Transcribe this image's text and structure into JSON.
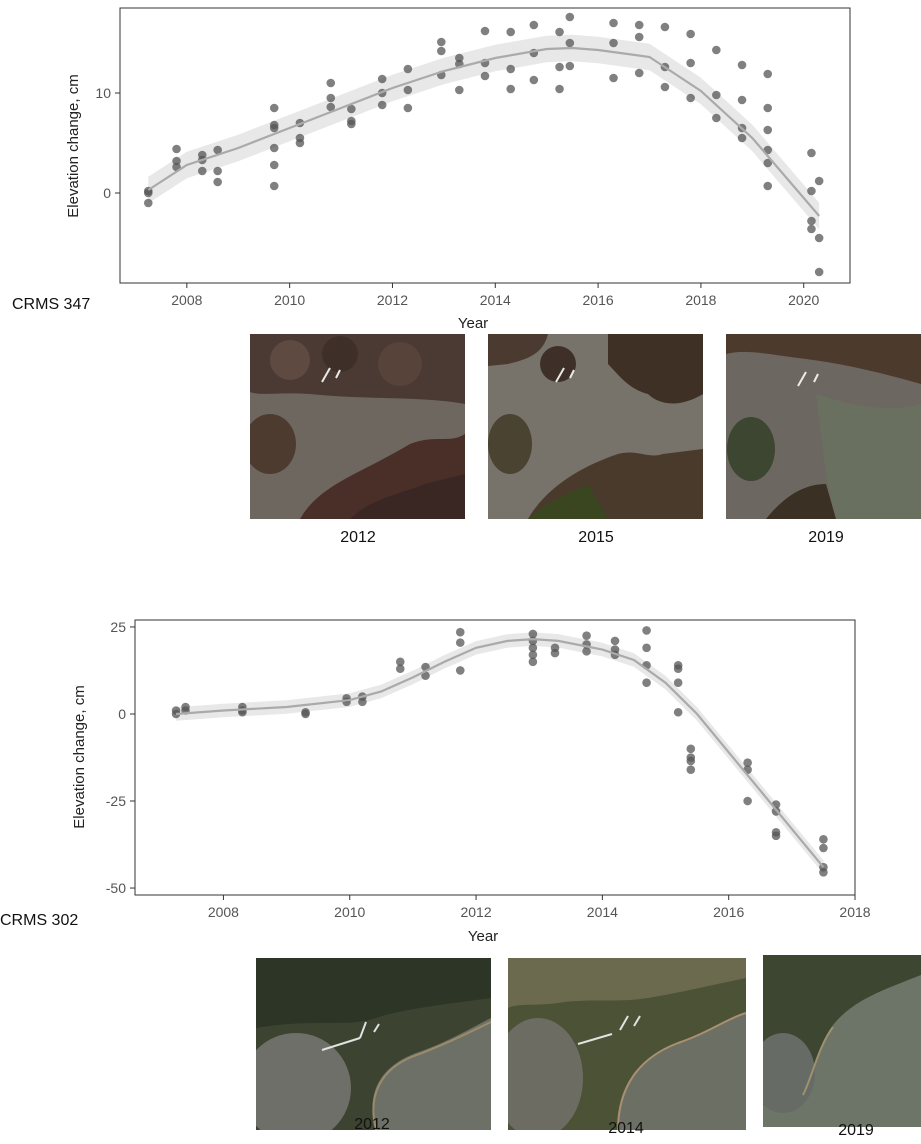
{
  "charts": [
    {
      "station": "CRMS 347",
      "photo_years": [
        "2012",
        "2015",
        "2019"
      ]
    },
    {
      "station": "CRMS 302",
      "photo_years": [
        "2012",
        "2014",
        "2019"
      ]
    }
  ],
  "colors": {
    "point": "#555555",
    "smooth_line": "#aaaaaa",
    "confidence_band": "#e6e6e6",
    "panel_border": "#333333",
    "water": "#6f6c63",
    "marsh_dark": "#3f2e26",
    "vegetation_green": "#3d4a2b"
  },
  "chart_data": [
    {
      "type": "scatter",
      "xlabel": "Year",
      "ylabel": "Elevation change, cm",
      "xlim": [
        2006.7,
        2020.9
      ],
      "ylim": [
        -9,
        18.5
      ],
      "xticks": [
        2008,
        2010,
        2012,
        2014,
        2016,
        2018,
        2020
      ],
      "yticks": [
        0,
        10
      ],
      "grid": false,
      "smooth": {
        "x": [
          2007.25,
          2008,
          2009,
          2010,
          2011,
          2012,
          2013,
          2014,
          2015,
          2015.5,
          2016,
          2017,
          2018,
          2019,
          2019.5,
          2020.3
        ],
        "y": [
          0.3,
          2.8,
          4.5,
          6.5,
          8.5,
          10.5,
          12.2,
          13.5,
          14.4,
          14.5,
          14.3,
          13.6,
          10.2,
          5.5,
          2.5,
          -2.3
        ]
      },
      "points": [
        [
          2007.25,
          0.2
        ],
        [
          2007.25,
          -1.0
        ],
        [
          2007.25,
          0.0
        ],
        [
          2007.8,
          4.4
        ],
        [
          2007.8,
          3.2
        ],
        [
          2007.8,
          2.6
        ],
        [
          2008.3,
          3.8
        ],
        [
          2008.3,
          2.2
        ],
        [
          2008.3,
          3.3
        ],
        [
          2008.6,
          4.3
        ],
        [
          2008.6,
          2.2
        ],
        [
          2008.6,
          1.1
        ],
        [
          2009.7,
          8.5
        ],
        [
          2009.7,
          6.8
        ],
        [
          2009.7,
          6.5
        ],
        [
          2009.7,
          4.5
        ],
        [
          2009.7,
          2.8
        ],
        [
          2009.7,
          0.7
        ],
        [
          2010.2,
          7.0
        ],
        [
          2010.2,
          5.5
        ],
        [
          2010.2,
          5.0
        ],
        [
          2010.8,
          11.0
        ],
        [
          2010.8,
          9.5
        ],
        [
          2010.8,
          8.6
        ],
        [
          2011.2,
          8.4
        ],
        [
          2011.2,
          7.2
        ],
        [
          2011.2,
          6.9
        ],
        [
          2011.8,
          11.4
        ],
        [
          2011.8,
          10.0
        ],
        [
          2011.8,
          8.8
        ],
        [
          2012.3,
          12.4
        ],
        [
          2012.3,
          10.3
        ],
        [
          2012.3,
          8.5
        ],
        [
          2012.95,
          15.1
        ],
        [
          2012.95,
          14.2
        ],
        [
          2012.95,
          11.8
        ],
        [
          2013.3,
          13.5
        ],
        [
          2013.3,
          12.9
        ],
        [
          2013.3,
          10.3
        ],
        [
          2013.8,
          16.2
        ],
        [
          2013.8,
          13.0
        ],
        [
          2013.8,
          11.7
        ],
        [
          2014.3,
          16.1
        ],
        [
          2014.3,
          12.4
        ],
        [
          2014.3,
          10.4
        ],
        [
          2014.75,
          16.8
        ],
        [
          2014.75,
          14.0
        ],
        [
          2014.75,
          11.3
        ],
        [
          2015.25,
          16.1
        ],
        [
          2015.25,
          12.6
        ],
        [
          2015.25,
          10.4
        ],
        [
          2015.45,
          17.6
        ],
        [
          2015.45,
          15.0
        ],
        [
          2015.45,
          12.7
        ],
        [
          2016.3,
          17.0
        ],
        [
          2016.3,
          15.0
        ],
        [
          2016.3,
          11.5
        ],
        [
          2016.8,
          16.8
        ],
        [
          2016.8,
          15.6
        ],
        [
          2016.8,
          12.0
        ],
        [
          2017.3,
          16.6
        ],
        [
          2017.3,
          12.6
        ],
        [
          2017.3,
          10.6
        ],
        [
          2017.8,
          15.9
        ],
        [
          2017.8,
          13.0
        ],
        [
          2017.8,
          9.5
        ],
        [
          2018.3,
          14.3
        ],
        [
          2018.3,
          9.8
        ],
        [
          2018.3,
          7.5
        ],
        [
          2018.8,
          12.8
        ],
        [
          2018.8,
          9.3
        ],
        [
          2018.8,
          6.5
        ],
        [
          2018.8,
          5.5
        ],
        [
          2019.3,
          11.9
        ],
        [
          2019.3,
          8.5
        ],
        [
          2019.3,
          6.3
        ],
        [
          2019.3,
          4.3
        ],
        [
          2019.3,
          3.0
        ],
        [
          2019.3,
          0.7
        ],
        [
          2020.15,
          4.0
        ],
        [
          2020.15,
          0.2
        ],
        [
          2020.15,
          -2.8
        ],
        [
          2020.15,
          -3.6
        ],
        [
          2020.3,
          1.2
        ],
        [
          2020.3,
          -4.5
        ],
        [
          2020.3,
          -7.9
        ]
      ]
    },
    {
      "type": "scatter",
      "xlabel": "Year",
      "ylabel": "Elevation change, cm",
      "xlim": [
        2006.6,
        2018
      ],
      "ylim": [
        -52,
        27
      ],
      "xticks": [
        2008,
        2010,
        2012,
        2014,
        2016,
        2018
      ],
      "yticks": [
        -50,
        -25,
        0,
        25
      ],
      "grid": false,
      "smooth": {
        "x": [
          2007.25,
          2008,
          2009,
          2010,
          2010.5,
          2011,
          2011.5,
          2012,
          2012.5,
          2012.9,
          2013.3,
          2014,
          2014.5,
          2015,
          2015.5,
          2016,
          2016.5,
          2017,
          2017.5
        ],
        "y": [
          0.0,
          1.0,
          2.0,
          4.0,
          6.5,
          10.5,
          15.0,
          19.0,
          21.0,
          21.5,
          21.0,
          18.5,
          15.5,
          9.0,
          0.0,
          -11.0,
          -22.0,
          -33.0,
          -44.0
        ]
      },
      "points": [
        [
          2007.25,
          1.0
        ],
        [
          2007.25,
          0.0
        ],
        [
          2007.4,
          2.0
        ],
        [
          2007.4,
          1.0
        ],
        [
          2008.3,
          2.0
        ],
        [
          2008.3,
          1.0
        ],
        [
          2008.3,
          0.5
        ],
        [
          2009.3,
          0.5
        ],
        [
          2009.3,
          0.0
        ],
        [
          2009.95,
          4.5
        ],
        [
          2009.95,
          3.5
        ],
        [
          2010.2,
          5.0
        ],
        [
          2010.2,
          3.5
        ],
        [
          2010.8,
          15.0
        ],
        [
          2010.8,
          13.0
        ],
        [
          2011.2,
          13.5
        ],
        [
          2011.2,
          11.0
        ],
        [
          2011.75,
          23.5
        ],
        [
          2011.75,
          20.5
        ],
        [
          2011.75,
          12.5
        ],
        [
          2012.9,
          23.0
        ],
        [
          2012.9,
          21.0
        ],
        [
          2012.9,
          19.0
        ],
        [
          2012.9,
          17.0
        ],
        [
          2012.9,
          15.0
        ],
        [
          2013.25,
          19.0
        ],
        [
          2013.25,
          17.5
        ],
        [
          2013.75,
          22.5
        ],
        [
          2013.75,
          20.0
        ],
        [
          2013.75,
          18.0
        ],
        [
          2014.2,
          21.0
        ],
        [
          2014.2,
          18.5
        ],
        [
          2014.2,
          17.0
        ],
        [
          2014.7,
          24.0
        ],
        [
          2014.7,
          19.0
        ],
        [
          2014.7,
          14.0
        ],
        [
          2014.7,
          9.0
        ],
        [
          2015.2,
          14.0
        ],
        [
          2015.2,
          13.0
        ],
        [
          2015.2,
          9.0
        ],
        [
          2015.2,
          0.5
        ],
        [
          2015.4,
          -10.0
        ],
        [
          2015.4,
          -12.5
        ],
        [
          2015.4,
          -13.5
        ],
        [
          2015.4,
          -16.0
        ],
        [
          2016.3,
          -14.0
        ],
        [
          2016.3,
          -16.0
        ],
        [
          2016.3,
          -25.0
        ],
        [
          2016.75,
          -26.0
        ],
        [
          2016.75,
          -28.0
        ],
        [
          2016.75,
          -34.0
        ],
        [
          2016.75,
          -35.0
        ],
        [
          2017.5,
          -36.0
        ],
        [
          2017.5,
          -38.5
        ],
        [
          2017.5,
          -44.0
        ],
        [
          2017.5,
          -45.5
        ]
      ]
    }
  ]
}
